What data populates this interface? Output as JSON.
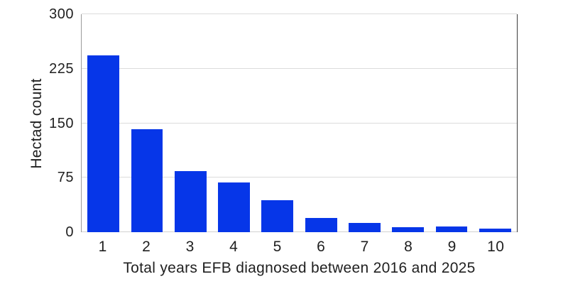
{
  "chart_data": {
    "type": "bar",
    "title": "",
    "xlabel": "Total years EFB diagnosed between 2016 and 2025",
    "ylabel": "Hectad count",
    "categories": [
      "1",
      "2",
      "3",
      "4",
      "5",
      "6",
      "7",
      "8",
      "9",
      "10"
    ],
    "values": [
      243,
      142,
      84,
      68,
      44,
      20,
      13,
      7,
      8,
      5
    ],
    "ylim": [
      0,
      300
    ],
    "yticks": [
      0,
      75,
      150,
      225,
      300
    ],
    "grid": true,
    "legend": "none",
    "colors": {
      "bar": "#0636e8",
      "gridline": "#dcdcdc",
      "axis_left": "#9b9b9b",
      "axis_right": "#3c3c3c",
      "text": "#1f1f1f",
      "background": "#ffffff"
    }
  }
}
